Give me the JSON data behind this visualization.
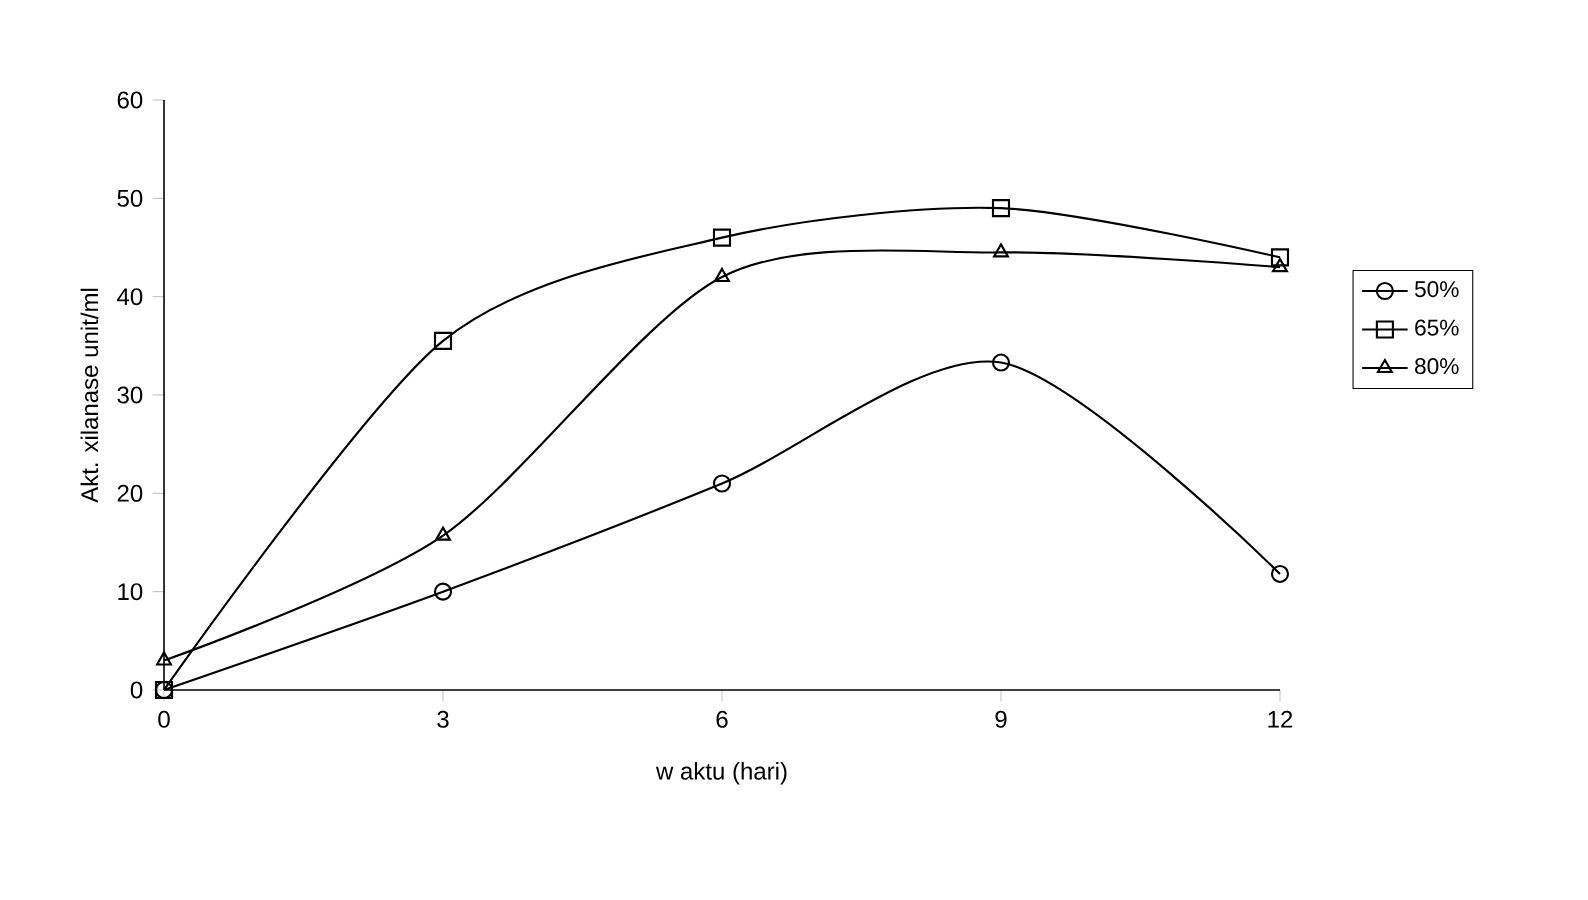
{
  "chart_data": {
    "type": "line",
    "xlabel": "w aktu (hari)",
    "ylabel": "Akt. xilanase unit/ml",
    "x": [
      0,
      3,
      6,
      9,
      12
    ],
    "series": [
      {
        "name": "50%",
        "color": "#000000",
        "marker": "circle",
        "values": [
          0,
          10,
          21,
          33.3,
          11.8
        ]
      },
      {
        "name": "65%",
        "color": "#000000",
        "marker": "square",
        "values": [
          0,
          35.5,
          46,
          49,
          44
        ]
      },
      {
        "name": "80%",
        "color": "#000000",
        "marker": "triangle",
        "values": [
          3,
          15.7,
          42,
          44.5,
          43
        ]
      }
    ],
    "xlim": [
      0,
      12
    ],
    "xticks": [
      0,
      3,
      6,
      9,
      12
    ],
    "ylim": [
      0,
      60
    ],
    "yticks": [
      0,
      10,
      20,
      30,
      40,
      50,
      60
    ],
    "grid": false,
    "legend": "right",
    "line_style": "solid"
  }
}
